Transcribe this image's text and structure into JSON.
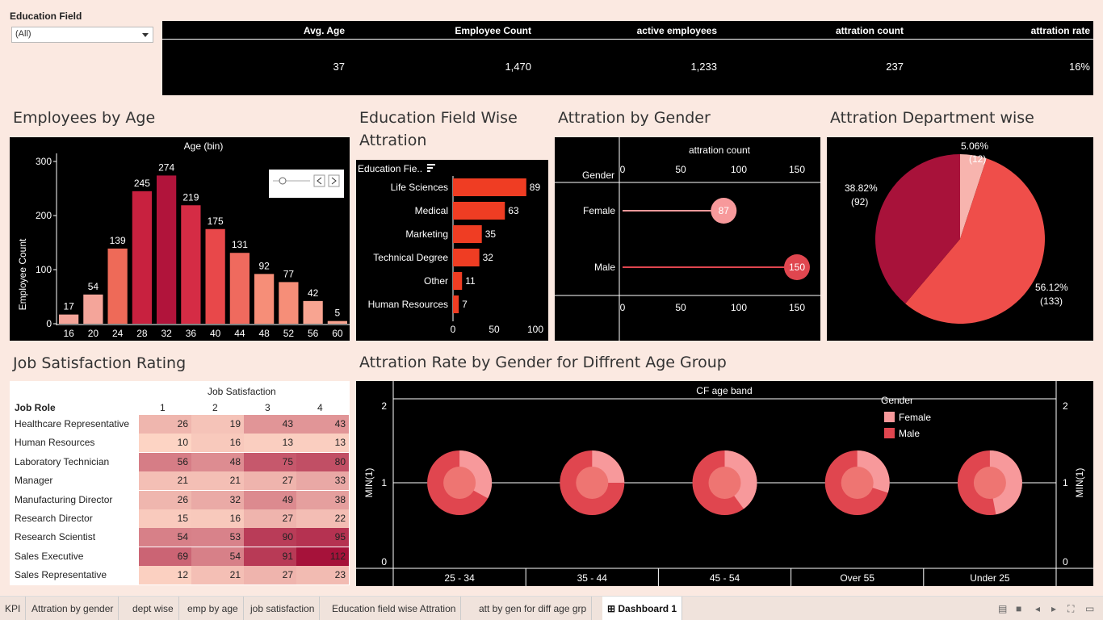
{
  "filter": {
    "label": "Education Field",
    "value": "(All)"
  },
  "kpi": {
    "headers": [
      "Avg. Age",
      "Employee Count",
      "active employees",
      "attration count",
      "attration rate"
    ],
    "values": [
      "37",
      "1,470",
      "1,233",
      "237",
      "16%"
    ]
  },
  "titles": {
    "age": "Employees by Age",
    "edu_line1": "Education Field Wise",
    "edu_line2": "Attration",
    "gender": "Attration by Gender",
    "dept": "Attration Department wise",
    "js": "Job Satisfaction Rating",
    "ageband": "Attration Rate by Gender for Diffrent Age Group"
  },
  "age_chart": {
    "header": "Age (bin)",
    "ylabel": "Employee Count",
    "yticks": [
      "300",
      "200",
      "100",
      "0"
    ],
    "chart_data": {
      "type": "bar",
      "categories": [
        "16",
        "20",
        "24",
        "28",
        "32",
        "36",
        "40",
        "44",
        "48",
        "52",
        "56",
        "60"
      ],
      "values": [
        17,
        54,
        139,
        245,
        274,
        219,
        175,
        131,
        92,
        77,
        42,
        5
      ],
      "ylim": [
        0,
        300
      ]
    },
    "colors": [
      "#f4a59a",
      "#f4a59a",
      "#ee6a58",
      "#c8213f",
      "#b1143b",
      "#d52c45",
      "#e8484a",
      "#ef6a5e",
      "#f68e78",
      "#f68e78",
      "#f8a491",
      "#f8a491"
    ]
  },
  "edu_chart": {
    "header": "Education Fie..",
    "xticks": [
      "0",
      "50",
      "100"
    ],
    "chart_data": {
      "type": "bar",
      "categories": [
        "Life Sciences",
        "Medical",
        "Marketing",
        "Technical Degree",
        "Other",
        "Human Resources"
      ],
      "values": [
        89,
        63,
        35,
        32,
        11,
        7
      ],
      "xlim": [
        0,
        100
      ]
    },
    "color": "#ef3d23"
  },
  "gender_chart": {
    "header": "attration count",
    "row_header": "Gender",
    "xticks": [
      "0",
      "50",
      "100",
      "150"
    ],
    "chart_data": {
      "type": "bar",
      "categories": [
        "Female",
        "Male"
      ],
      "values": [
        87,
        150
      ],
      "xlim": [
        0,
        170
      ]
    },
    "colors": [
      "#f7999b",
      "#e0464f"
    ]
  },
  "dept_chart": {
    "chart_data": {
      "type": "pie",
      "slices": [
        {
          "pct": "5.06%",
          "count": "(12)",
          "value": 12
        },
        {
          "pct": "56.12%",
          "count": "(133)",
          "value": 133
        },
        {
          "pct": "38.82%",
          "count": "(92)",
          "value": 92
        }
      ]
    },
    "colors": [
      "#f7b4ae",
      "#ef4e4a",
      "#a8123a"
    ]
  },
  "job_sat": {
    "top_header": "Job Satisfaction",
    "row_header": "Job Role",
    "cols": [
      "1",
      "2",
      "3",
      "4"
    ],
    "chart_data": {
      "type": "heatmap",
      "rows": [
        {
          "role": "Healthcare Representative",
          "values": [
            "26",
            "19",
            "43",
            "43"
          ]
        },
        {
          "role": "Human Resources",
          "values": [
            "10",
            "16",
            "13",
            "13"
          ]
        },
        {
          "role": "Laboratory Technician",
          "values": [
            "56",
            "48",
            "75",
            "80"
          ]
        },
        {
          "role": "Manager",
          "values": [
            "21",
            "21",
            "27",
            "33"
          ]
        },
        {
          "role": "Manufacturing Director",
          "values": [
            "26",
            "32",
            "49",
            "38"
          ]
        },
        {
          "role": "Research Director",
          "values": [
            "15",
            "16",
            "27",
            "22"
          ]
        },
        {
          "role": "Research Scientist",
          "values": [
            "54",
            "53",
            "90",
            "95"
          ]
        },
        {
          "role": "Sales Executive",
          "values": [
            "69",
            "54",
            "91",
            "112"
          ]
        },
        {
          "role": "Sales Representative",
          "values": [
            "12",
            "21",
            "27",
            "23"
          ]
        }
      ]
    },
    "max": 112
  },
  "ageband_chart": {
    "header": "CF age band",
    "ylabel": "MIN(1)",
    "yticks": [
      "2",
      "1",
      "0"
    ],
    "legend_title": "Gender",
    "legend": [
      {
        "name": "Female",
        "color": "#f7999b"
      },
      {
        "name": "Male",
        "color": "#e0464f"
      }
    ],
    "chart_data": {
      "type": "pie",
      "categories": [
        "25 - 34",
        "35 - 44",
        "45 - 54",
        "Over 55",
        "Under 25"
      ],
      "female_share": [
        0.33,
        0.25,
        0.4,
        0.3,
        0.47
      ]
    }
  },
  "tabs": [
    "KPI",
    "Attration by gender",
    "dept wise",
    "emp by age",
    "job satisfaction",
    "Education field wise Attration",
    "att by gen for diff age grp",
    "Dashboard 1"
  ]
}
